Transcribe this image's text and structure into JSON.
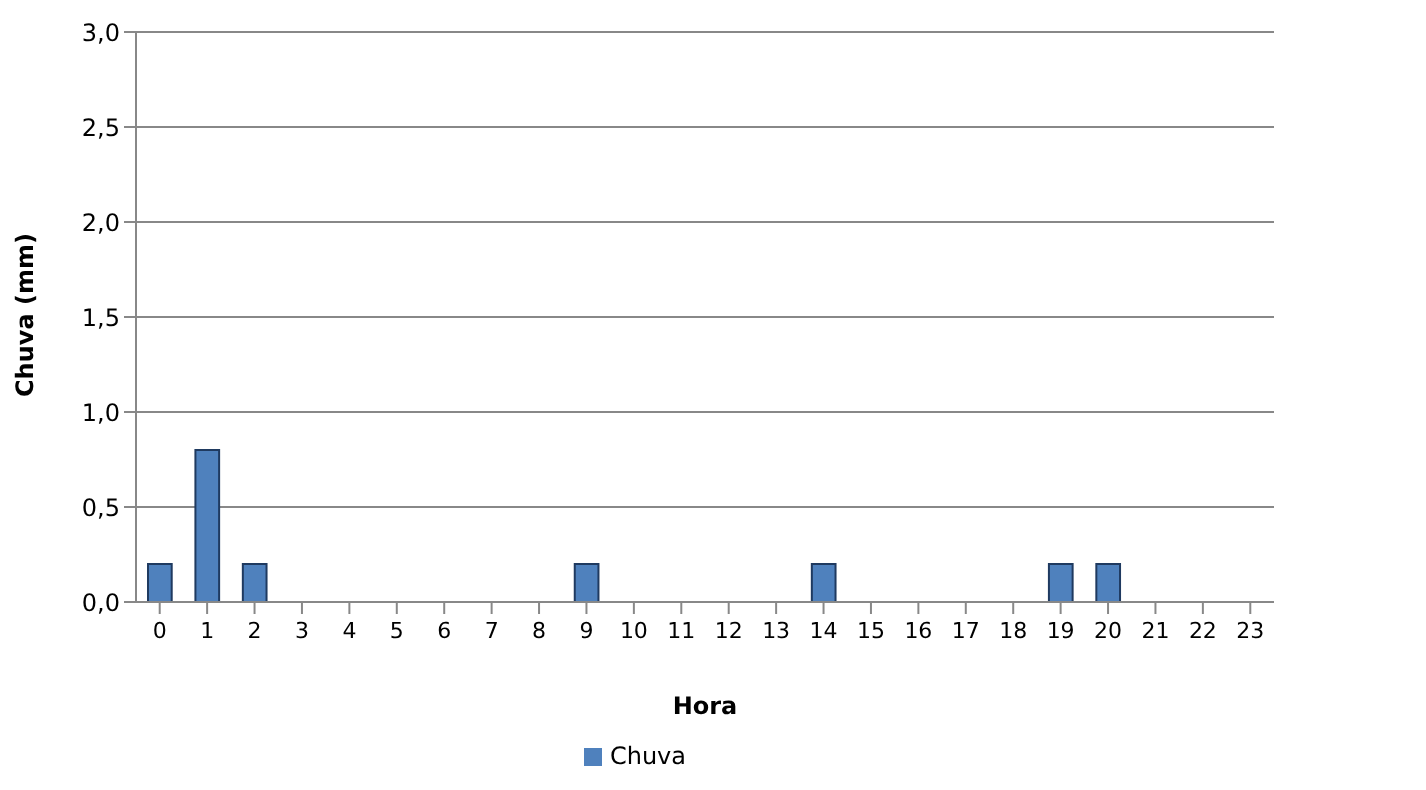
{
  "chart_data": {
    "type": "bar",
    "xlabel": "Hora",
    "ylabel": "Chuva (mm)",
    "x": [
      0,
      1,
      2,
      3,
      4,
      5,
      6,
      7,
      8,
      9,
      10,
      11,
      12,
      13,
      14,
      15,
      16,
      17,
      18,
      19,
      20,
      21,
      22,
      23
    ],
    "xlim": [
      -0.5,
      23.5
    ],
    "xticks": [
      0,
      1,
      2,
      3,
      4,
      5,
      6,
      7,
      8,
      9,
      10,
      11,
      12,
      13,
      14,
      15,
      16,
      17,
      18,
      19,
      20,
      21,
      22,
      23
    ],
    "series": [
      {
        "name": "Chuva",
        "color": "#4f81bd",
        "values": [
          0.2,
          0.8,
          0.2,
          0,
          0,
          0,
          0,
          0,
          0,
          0.2,
          0,
          0,
          0,
          0,
          0.2,
          0,
          0,
          0,
          0,
          0.2,
          0.2,
          0,
          0,
          0
        ]
      }
    ],
    "ylim": [
      0,
      3
    ],
    "yticks": [
      {
        "value": 0,
        "label": "0,0"
      },
      {
        "value": 0.5,
        "label": "0,5"
      },
      {
        "value": 1,
        "label": "1,0"
      },
      {
        "value": 1.5,
        "label": "1,5"
      },
      {
        "value": 2,
        "label": "2,0"
      },
      {
        "value": 2.5,
        "label": "2,5"
      },
      {
        "value": 3,
        "label": "3,0"
      }
    ],
    "grid": "y",
    "legend": "bottom"
  }
}
